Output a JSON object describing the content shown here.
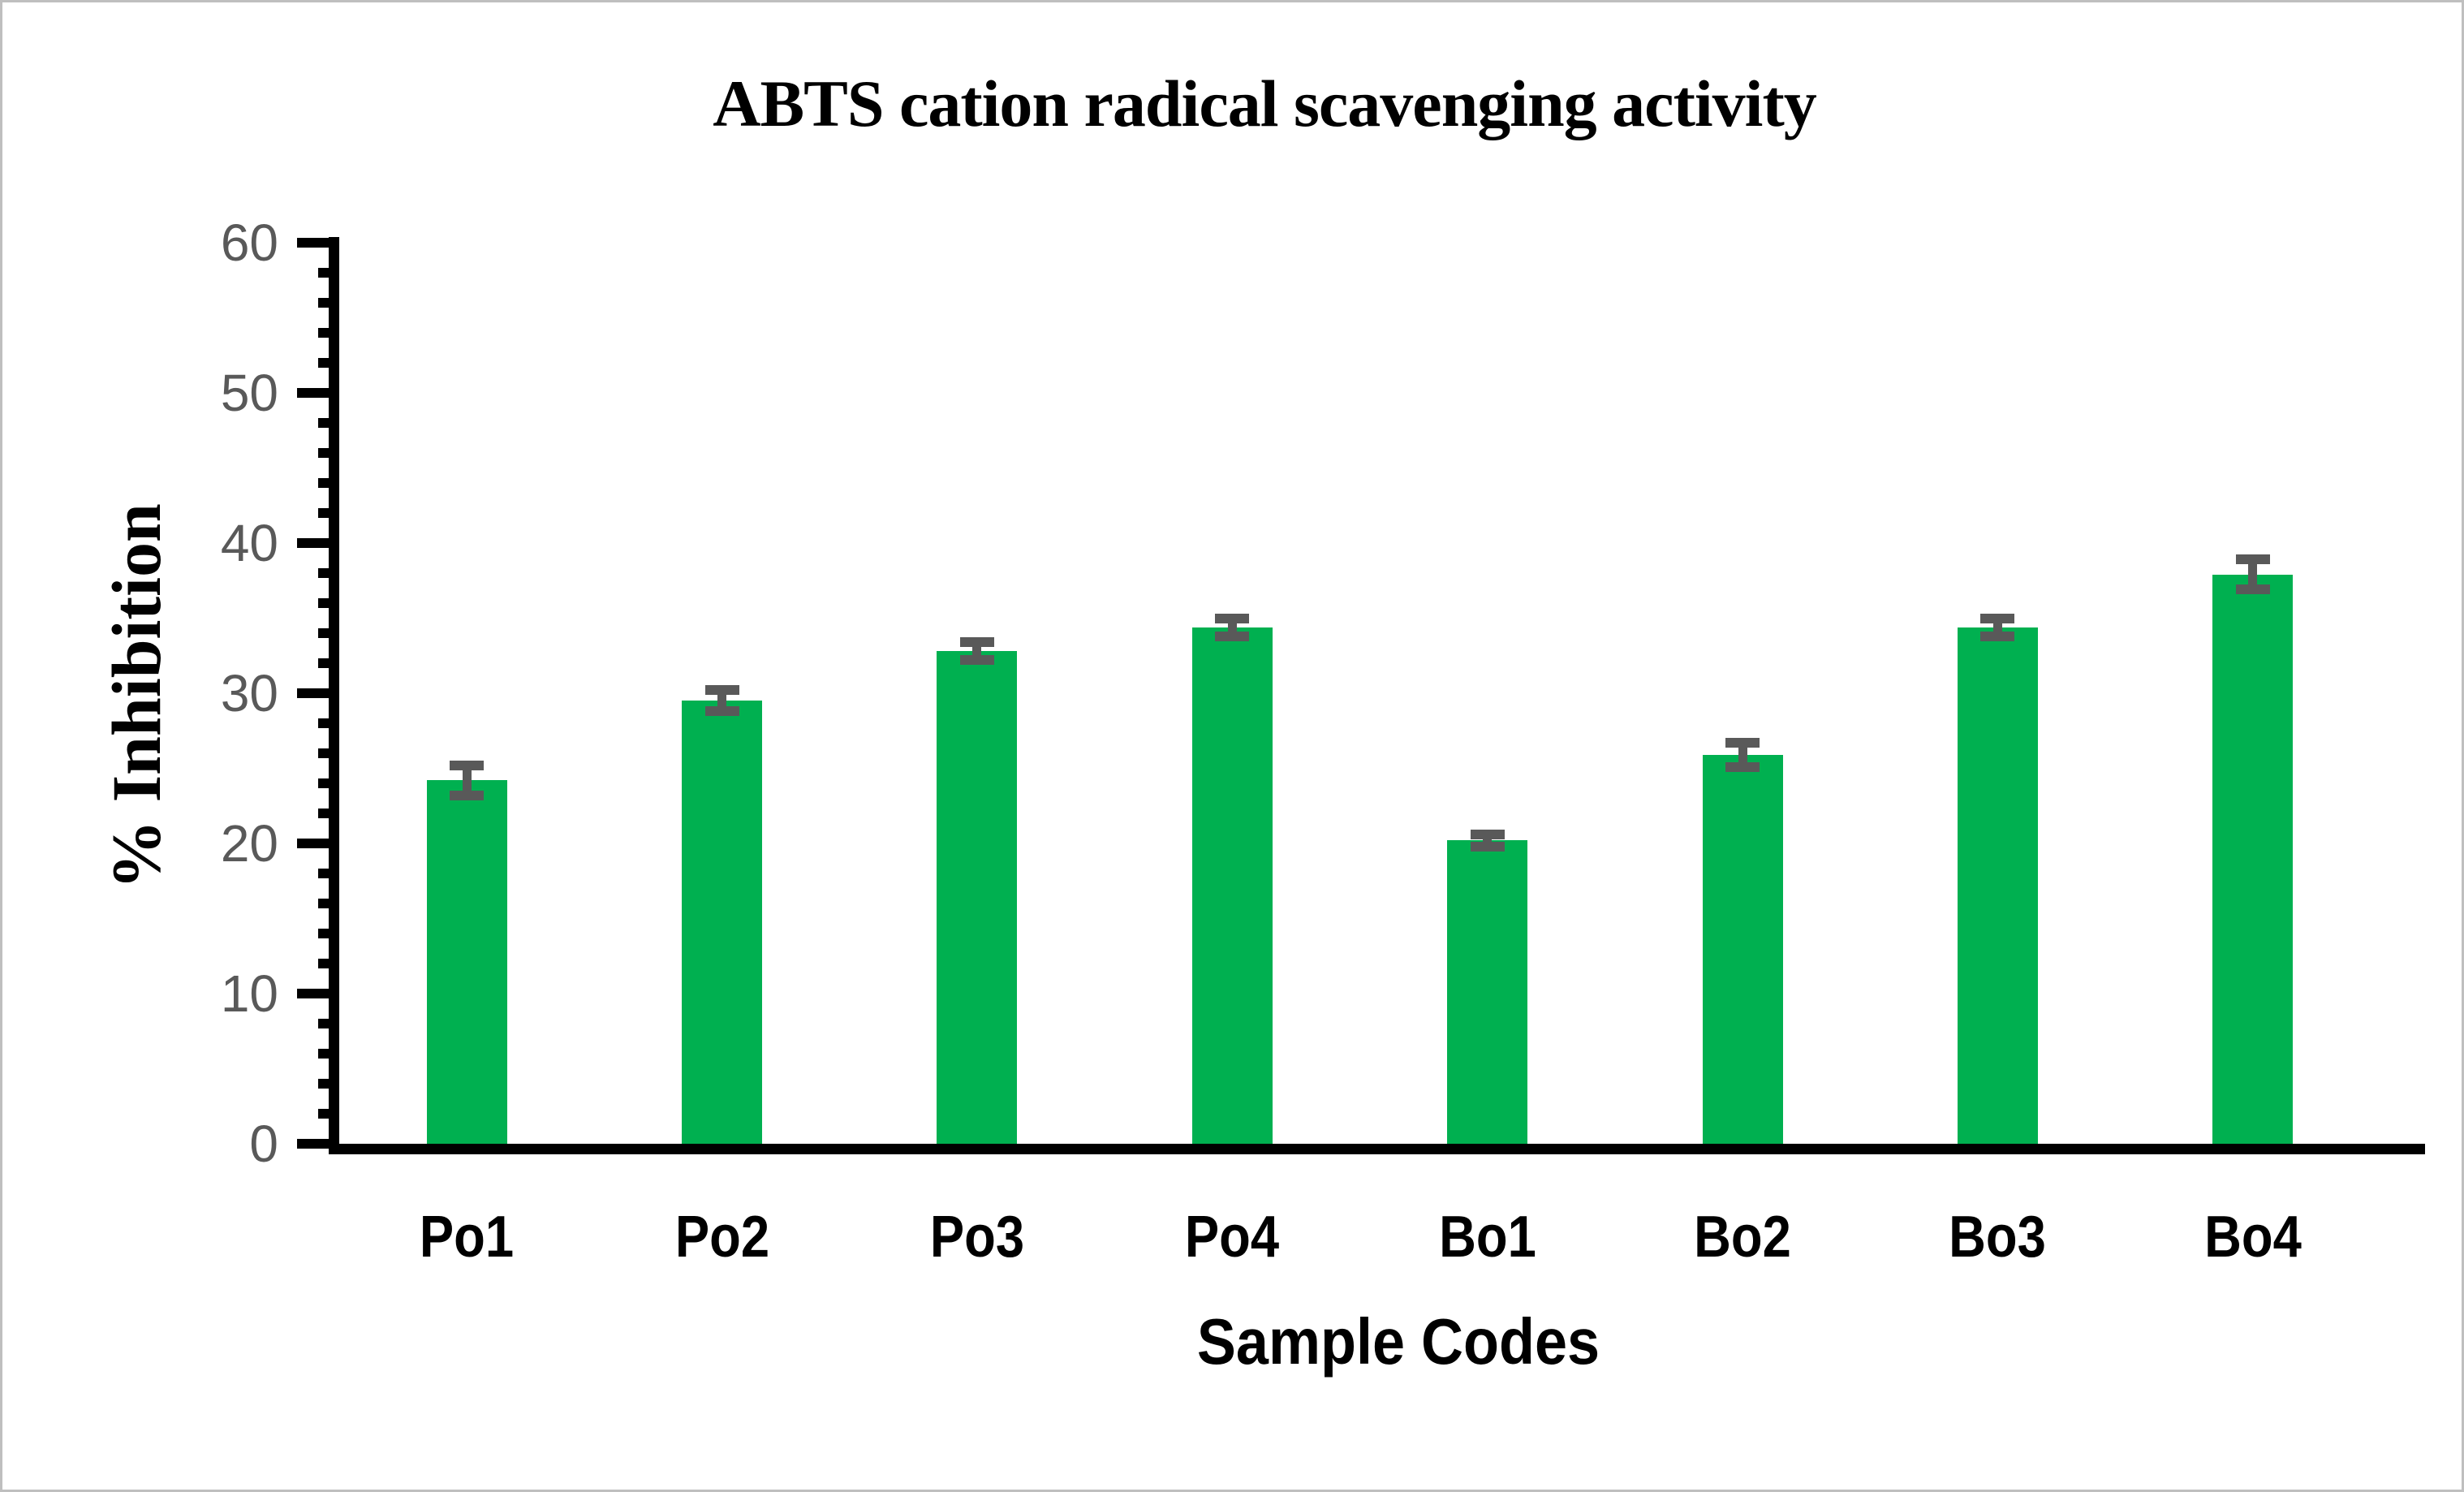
{
  "chart_data": {
    "type": "bar",
    "title": "ABTS cation radical scavenging activity",
    "xlabel": "Sample Codes",
    "ylabel": "% Inhibition",
    "categories": [
      "Po1",
      "Po2",
      "Po3",
      "Po4",
      "Bo1",
      "Bo2",
      "Bo3",
      "Bo4"
    ],
    "values": [
      24.2,
      29.5,
      32.8,
      34.4,
      20.2,
      25.9,
      34.4,
      37.9
    ],
    "error_bars": [
      1.0,
      0.7,
      0.6,
      0.6,
      0.4,
      0.8,
      0.6,
      1.0
    ],
    "ylim": [
      0,
      60
    ],
    "ytick_labels": [
      "0",
      "10",
      "20",
      "30",
      "40",
      "50",
      "60"
    ],
    "ytick_major_step": 10,
    "ytick_minor_step": 2,
    "grid": false,
    "legend": false,
    "bar_color": "#00B050",
    "error_bar_color": "#595959",
    "ytick_label_color": "#595959",
    "axis_color": "#000000",
    "frame_border_color": "#bfbfbf",
    "background_color": "#ffffff"
  }
}
